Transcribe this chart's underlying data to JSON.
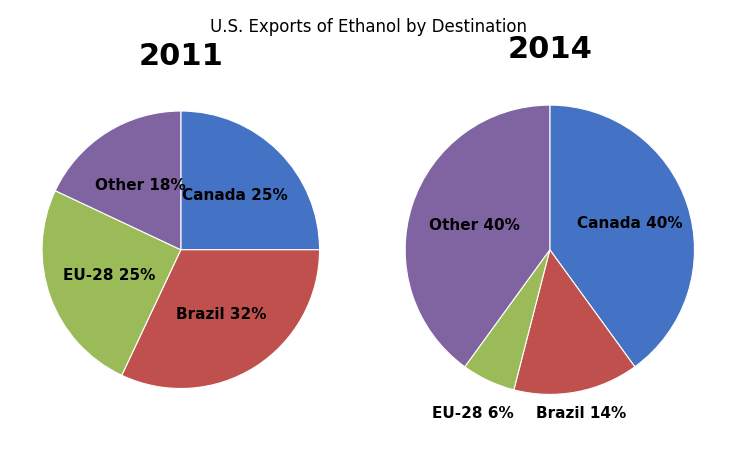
{
  "title": "U.S. Exports of Ethanol by Destination",
  "title_fontsize": 12,
  "chart2011": {
    "label": "2011",
    "values": [
      25,
      32,
      25,
      18
    ],
    "colors": [
      "#4472C4",
      "#C0504D",
      "#9BBB59",
      "#8064A2"
    ],
    "labels": [
      "Canada 25%",
      "Brazil 32%",
      "EU-28 25%",
      "Other 18%"
    ],
    "startangle": 90
  },
  "chart2014": {
    "label": "2014",
    "values": [
      40,
      14,
      6,
      40
    ],
    "colors": [
      "#4472C4",
      "#C0504D",
      "#9BBB59",
      "#8064A2"
    ],
    "labels": [
      "Canada 40%",
      "Brazil 14%",
      "EU-28 6%",
      "Other 40%"
    ],
    "startangle": 90
  },
  "label_fontsize": 11,
  "year_fontsize": 22,
  "background_color": "#ffffff"
}
